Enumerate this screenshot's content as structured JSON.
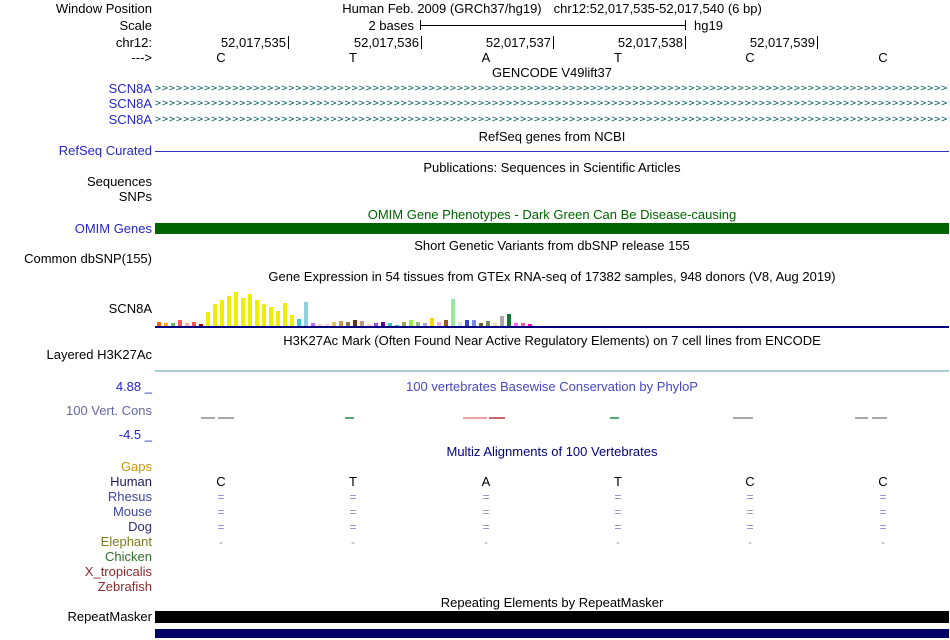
{
  "header": {
    "window_position_label": "Window Position",
    "assembly": "Human Feb. 2009 (GRCh37/hg19)",
    "position": "chr12:52,017,535-52,017,540 (6 bp)",
    "scale_label": "Scale",
    "scale_value": "2 bases",
    "genome": "hg19",
    "chrom_label": "chr12:",
    "strand_label": "--->",
    "positions": [
      "52,017,535",
      "52,017,536",
      "52,017,537",
      "52,017,538",
      "52,017,539"
    ],
    "bases": [
      "C",
      "T",
      "A",
      "T",
      "C",
      "C"
    ]
  },
  "colors": {
    "track_label_blue": "#2626c9",
    "gencode_item": "#0b615e",
    "refseq_line": "#3333bb",
    "omim_green": "#006400",
    "gtex_baseline": "#000080",
    "h3k27ac_baseline": "#a9cfd2",
    "phylop_title": "#4848c8",
    "cons_label": "#6666aa",
    "multiz_title": "#000080",
    "repeat_black": "#000000",
    "bottom_bar": "#000066"
  },
  "tracks": {
    "gencode": {
      "title": "GENCODE V49lift37",
      "arrow_char": ">",
      "items": [
        "SCN8A",
        "SCN8A",
        "SCN8A"
      ]
    },
    "refseq": {
      "title": "RefSeq genes from NCBI",
      "label": "RefSeq Curated"
    },
    "publications": {
      "title": "Publications: Sequences in Scientific Articles",
      "rows": [
        "Sequences",
        "SNPs"
      ]
    },
    "omim": {
      "title": "OMIM Gene Phenotypes - Dark Green Can Be Disease-causing",
      "label": "OMIM Genes"
    },
    "dbsnp": {
      "title": "Short Genetic Variants from dbSNP release 155",
      "label": "Common dbSNP(155)"
    },
    "gtex": {
      "title": "Gene Expression in 54 tissues from GTEx RNA-seq of 17382 samples, 948 donors (V8, Aug 2019)",
      "label": "SCN8A",
      "bars": [
        [
          4,
          "#ff6600"
        ],
        [
          3,
          "#ffaa00"
        ],
        [
          3,
          "#66bb66"
        ],
        [
          6,
          "#ff5555"
        ],
        [
          3,
          "#ffaaaa"
        ],
        [
          4,
          "#ff5555"
        ],
        [
          2,
          "#990000"
        ],
        [
          14,
          "#eeee00"
        ],
        [
          22,
          "#eeee00"
        ],
        [
          26,
          "#eeee00"
        ],
        [
          30,
          "#eeee00"
        ],
        [
          34,
          "#eeee00"
        ],
        [
          28,
          "#eeee00"
        ],
        [
          32,
          "#eeee00"
        ],
        [
          26,
          "#eeee00"
        ],
        [
          22,
          "#eeee00"
        ],
        [
          19,
          "#eeee00"
        ],
        [
          15,
          "#eeee00"
        ],
        [
          23,
          "#eeee00"
        ],
        [
          11,
          "#eeee00"
        ],
        [
          7,
          "#33cccc"
        ],
        [
          24,
          "#8fd0e0"
        ],
        [
          3,
          "#cc66ff"
        ],
        [
          2,
          "#ffcccc"
        ],
        [
          2,
          "#ffcccc"
        ],
        [
          4,
          "#eebb66"
        ],
        [
          5,
          "#cc9944"
        ],
        [
          4,
          "#8b7355"
        ],
        [
          6,
          "#663311"
        ],
        [
          5,
          "#bb9977"
        ],
        [
          2,
          "#ffcccc"
        ],
        [
          3,
          "#9955cc"
        ],
        [
          4,
          "#660099"
        ],
        [
          3,
          "#33ccbb"
        ],
        [
          1,
          "#33ccbb"
        ],
        [
          4,
          "#99aa55"
        ],
        [
          6,
          "#99ee44"
        ],
        [
          4,
          "#99bb88"
        ],
        [
          3,
          "#aaaadd"
        ],
        [
          8,
          "#ffd700"
        ],
        [
          4,
          "#ffaadd"
        ],
        [
          6,
          "#995522"
        ],
        [
          27,
          "#99e899"
        ],
        [
          4,
          "#dddddd"
        ],
        [
          6,
          "#3344cc"
        ],
        [
          6,
          "#7788ee"
        ],
        [
          3,
          "#666633"
        ],
        [
          5,
          "#778855"
        ],
        [
          3,
          "#ffdd99"
        ],
        [
          10,
          "#aaaaaa"
        ],
        [
          12,
          "#117733"
        ],
        [
          3,
          "#ff66ff"
        ],
        [
          3,
          "#ff5599"
        ],
        [
          2,
          "#ff00bb"
        ]
      ]
    },
    "h3k27ac": {
      "title": "H3K27Ac Mark (Often Found Near Active Regulatory Elements) on 7 cell lines from ENCODE",
      "label": "Layered H3K27Ac"
    },
    "conservation": {
      "title": "100 vertebrates Basewise Conservation by PhyloP",
      "label": "100 Vert. Cons",
      "max_label": "4.88 _",
      "min_label": "-4.5 _",
      "segments": [
        [
          46,
          14,
          "#a8a8a8"
        ],
        [
          63,
          16,
          "#a8a8a8"
        ],
        [
          190,
          9,
          "#55aa77"
        ],
        [
          308,
          24,
          "#f0a0a0"
        ],
        [
          334,
          16,
          "#cc6666"
        ],
        [
          455,
          9,
          "#55aa77"
        ],
        [
          578,
          20,
          "#a8a8a8"
        ],
        [
          700,
          13,
          "#a8a8a8"
        ],
        [
          717,
          15,
          "#a8a8a8"
        ]
      ]
    },
    "multiz": {
      "title": "Multiz Alignments of 100 Vertebrates",
      "rows": [
        {
          "label": "Gaps",
          "color": "#c8960c",
          "mark_color": "#c8960c",
          "marks": [
            "",
            "",
            "",
            "",
            "",
            ""
          ]
        },
        {
          "label": "Human",
          "color": "#1c1c5e",
          "mark_color": "#000000",
          "marks": [
            "C",
            "T",
            "A",
            "T",
            "C",
            "C"
          ]
        },
        {
          "label": "Rhesus",
          "color": "#4343a5",
          "mark_color": "#8a8ac8",
          "marks": [
            "=",
            "=",
            "=",
            "=",
            "=",
            "="
          ]
        },
        {
          "label": "Mouse",
          "color": "#4343a5",
          "mark_color": "#8a8ac8",
          "marks": [
            "=",
            "=",
            "=",
            "=",
            "=",
            "="
          ]
        },
        {
          "label": "Dog",
          "color": "#2c2c80",
          "mark_color": "#8a8ac8",
          "marks": [
            "=",
            "=",
            "=",
            "=",
            "=",
            "="
          ]
        },
        {
          "label": "Elephant",
          "color": "#7a7a1e",
          "mark_color": "#9a9a9a",
          "marks": [
            "-",
            "-",
            "-",
            "-",
            "-",
            "-"
          ]
        },
        {
          "label": "Chicken",
          "color": "#2d6e2d",
          "mark_color": "#2d6e2d",
          "marks": [
            "",
            "",
            "",
            "",
            "",
            ""
          ]
        },
        {
          "label": "X_tropicalis",
          "color": "#8b2a2a",
          "mark_color": "#8b2a2a",
          "marks": [
            "",
            "",
            "",
            "",
            "",
            ""
          ]
        },
        {
          "label": "Zebrafish",
          "color": "#8b2a2a",
          "mark_color": "#8b2a2a",
          "marks": [
            "",
            "",
            "",
            "",
            "",
            ""
          ]
        }
      ]
    },
    "repeatmasker": {
      "title": "Repeating Elements by RepeatMasker",
      "label": "RepeatMasker"
    }
  }
}
